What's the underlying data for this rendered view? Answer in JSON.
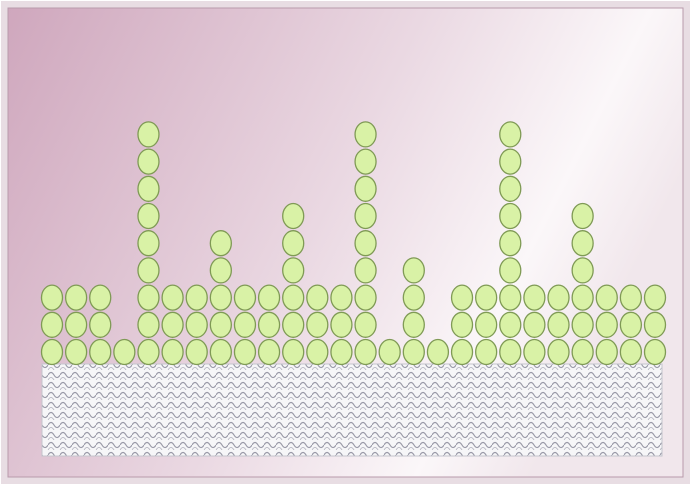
{
  "chart_data": {
    "type": "dot",
    "values": [
      3,
      3,
      3,
      1,
      9,
      3,
      3,
      5,
      3,
      3,
      6,
      3,
      3,
      9,
      1,
      4,
      1,
      3,
      3,
      9,
      3,
      3,
      6,
      3,
      3,
      3
    ],
    "color": "#d9f2a6"
  }
}
